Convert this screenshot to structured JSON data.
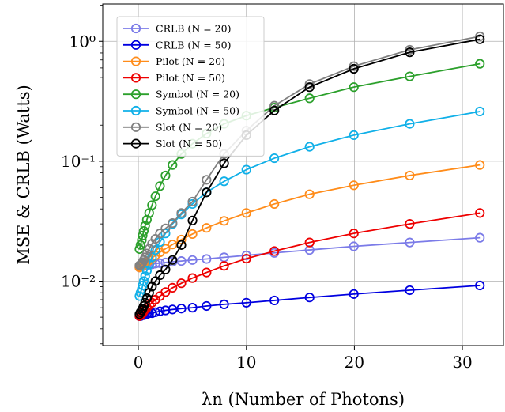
{
  "chart_data": {
    "type": "line",
    "xlabel": "λn (Number of Photons)",
    "ylabel": "MSE & CRLB (Watts)",
    "yscale": "log",
    "xlim": [
      -3.3,
      33.8
    ],
    "ylim": [
      0.0029,
      2.05
    ],
    "xticks": [
      0,
      10,
      20,
      30
    ],
    "xtick_labels": [
      "0",
      "10",
      "20",
      "30"
    ],
    "yticks": [
      0.01,
      0.1,
      1
    ],
    "ytick_labels": [
      "10⁻²",
      "10⁻¹",
      "10⁰"
    ],
    "grid": true,
    "legend_position": "top-left",
    "x": [
      0.1,
      0.2,
      0.32,
      0.4,
      0.5,
      0.63,
      0.79,
      1.0,
      1.26,
      1.58,
      2.0,
      2.51,
      3.16,
      3.98,
      5.01,
      6.31,
      7.94,
      10.0,
      12.59,
      15.85,
      19.95,
      25.12,
      31.62
    ],
    "series": [
      {
        "name": "CRLB (N = 20)",
        "color": "#7b7be8",
        "values": [
          0.013,
          0.0131,
          0.0132,
          0.0133,
          0.0134,
          0.0135,
          0.0136,
          0.0137,
          0.0138,
          0.014,
          0.0141,
          0.0143,
          0.0145,
          0.0147,
          0.015,
          0.0153,
          0.0158,
          0.0164,
          0.0172,
          0.0182,
          0.0195,
          0.021,
          0.023
        ]
      },
      {
        "name": "CRLB (N = 50)",
        "color": "#0000e0",
        "values": [
          0.0051,
          0.0051,
          0.0052,
          0.0052,
          0.0052,
          0.0053,
          0.0053,
          0.0054,
          0.0054,
          0.0055,
          0.0056,
          0.0057,
          0.0058,
          0.0059,
          0.006,
          0.0062,
          0.0064,
          0.0066,
          0.0069,
          0.0073,
          0.0078,
          0.0084,
          0.0092
        ]
      },
      {
        "name": "Pilot (N = 20)",
        "color": "#ff8c1a",
        "values": [
          0.013,
          0.0131,
          0.0133,
          0.0135,
          0.0137,
          0.014,
          0.0144,
          0.0149,
          0.0156,
          0.0164,
          0.0174,
          0.0186,
          0.0202,
          0.0222,
          0.0247,
          0.0278,
          0.0318,
          0.037,
          0.044,
          0.053,
          0.063,
          0.076,
          0.093
        ]
      },
      {
        "name": "Pilot (N = 50)",
        "color": "#ee0000",
        "values": [
          0.0051,
          0.0052,
          0.0053,
          0.0054,
          0.0056,
          0.0058,
          0.006,
          0.0063,
          0.0066,
          0.007,
          0.0075,
          0.0081,
          0.0088,
          0.0096,
          0.0106,
          0.0118,
          0.0134,
          0.0154,
          0.0178,
          0.021,
          0.025,
          0.03,
          0.037
        ]
      },
      {
        "name": "Symbol (N = 20)",
        "color": "#2ca02c",
        "values": [
          0.0185,
          0.02,
          0.022,
          0.024,
          0.0262,
          0.029,
          0.0325,
          0.037,
          0.043,
          0.051,
          0.062,
          0.076,
          0.093,
          0.115,
          0.14,
          0.17,
          0.205,
          0.24,
          0.28,
          0.335,
          0.415,
          0.51,
          0.65
        ]
      },
      {
        "name": "Symbol (N = 50)",
        "color": "#11b0e8",
        "values": [
          0.0075,
          0.008,
          0.0086,
          0.0092,
          0.01,
          0.011,
          0.0122,
          0.0138,
          0.0158,
          0.0182,
          0.0212,
          0.025,
          0.03,
          0.036,
          0.044,
          0.055,
          0.068,
          0.085,
          0.106,
          0.132,
          0.165,
          0.205,
          0.26
        ]
      },
      {
        "name": "Slot (N = 20)",
        "color": "#808080",
        "values": [
          0.0135,
          0.0137,
          0.014,
          0.0144,
          0.015,
          0.0158,
          0.017,
          0.0186,
          0.0205,
          0.0225,
          0.025,
          0.0275,
          0.0305,
          0.037,
          0.046,
          0.07,
          0.115,
          0.18,
          0.29,
          0.44,
          0.62,
          0.85,
          1.1
        ]
      },
      {
        "name": "Slot (N = 50)",
        "color": "#000000",
        "values": [
          0.0053,
          0.0055,
          0.0057,
          0.0059,
          0.0062,
          0.0066,
          0.0072,
          0.008,
          0.009,
          0.01,
          0.0112,
          0.0125,
          0.015,
          0.02,
          0.032,
          0.055,
          0.096,
          0.165,
          0.265,
          0.415,
          0.59,
          0.81,
          1.04
        ]
      }
    ]
  }
}
